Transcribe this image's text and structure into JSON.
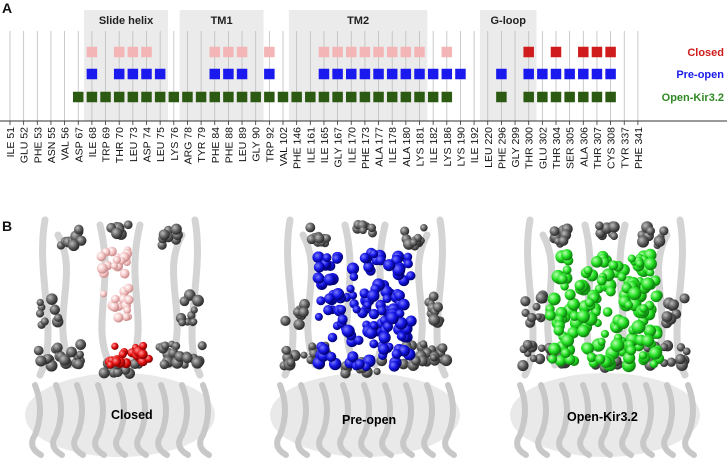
{
  "panel_a": {
    "label": "A",
    "regions": [
      {
        "name": "Slide helix",
        "start": 6,
        "end": 11
      },
      {
        "name": "TM1",
        "start": 13,
        "end": 18
      },
      {
        "name": "TM2",
        "start": 21,
        "end": 30
      },
      {
        "name": "G-loop",
        "start": 35,
        "end": 38
      }
    ],
    "residues": [
      "ILE 51",
      "GLU 52",
      "PHE 53",
      "ASN 55",
      "VAL 56",
      "ASP 67",
      "ILE 68",
      "TRP 69",
      "THR 70",
      "LEU 73",
      "ASP 74",
      "LEU 75",
      "LYS 76",
      "ARG 78",
      "TYR 79",
      "PHE 84",
      "PHE 88",
      "LEU 89",
      "GLY 90",
      "TRP 92",
      "VAL 102",
      "PHE 146",
      "ILE 161",
      "ILE 165",
      "GLY 167",
      "ILE 170",
      "PHE 173",
      "ALA 177",
      "ILE 178",
      "ALA 180",
      "LYS 181",
      "ILE 182",
      "LYS 186",
      "LYS 190",
      "ILE 192",
      "LEU 220",
      "PHE 296",
      "GLY 299",
      "THR 300",
      "GLU 302",
      "THR 304",
      "SER 305",
      "ALA 306",
      "THR 307",
      "CYS 308",
      "TYR 337",
      "PHE 341"
    ],
    "rows": [
      {
        "name": "Closed",
        "color_light": "#f3b5b5",
        "color_dark": "#d01c1c",
        "light_indices": [
          6,
          8,
          9,
          10,
          15,
          16,
          17,
          19,
          23,
          24,
          25,
          26,
          27,
          28,
          29,
          30,
          32
        ],
        "dark_indices": [
          38,
          40,
          42,
          43,
          44
        ]
      },
      {
        "name": "Pre-open",
        "color": "#1a1aee",
        "indices": [
          6,
          8,
          9,
          10,
          11,
          15,
          16,
          17,
          19,
          23,
          24,
          25,
          26,
          27,
          28,
          29,
          30,
          31,
          32,
          33,
          36,
          38,
          39,
          40,
          41,
          42,
          43,
          44
        ]
      },
      {
        "name": "Open-Kir3.2",
        "color": "#2c5a12",
        "indices": [
          5,
          6,
          7,
          8,
          9,
          10,
          11,
          12,
          13,
          14,
          15,
          16,
          17,
          18,
          19,
          20,
          21,
          22,
          23,
          24,
          25,
          26,
          27,
          28,
          29,
          30,
          31,
          32,
          36,
          38,
          39,
          40,
          41,
          42,
          43,
          44
        ]
      }
    ]
  },
  "panel_b": {
    "label": "B",
    "structures": [
      {
        "name": "Closed",
        "label_color": "#d01c1c"
      },
      {
        "name": "Pre-open",
        "label_color": "#1a1aee"
      },
      {
        "name": "Open-Kir3.2",
        "label_color": "#2f9a2f"
      }
    ]
  }
}
